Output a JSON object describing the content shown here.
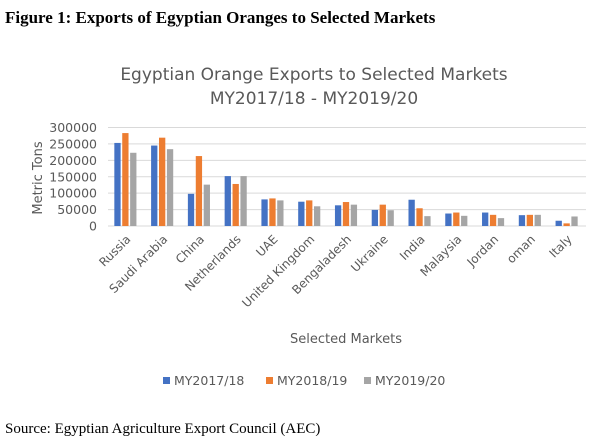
{
  "figure_title": "Figure 1: Exports of Egyptian Oranges to Selected Markets",
  "source": "Source: Egyptian Agriculture Export Council (AEC)",
  "colors": {
    "MY2017/18": "#4472c4",
    "MY2018/19": "#ed7d31",
    "MY2019/20": "#a5a5a5"
  },
  "chart_data": {
    "type": "bar",
    "title": "Egyptian Orange Exports to Selected Markets",
    "subtitle": "MY2017/18 - MY2019/20",
    "xlabel": "Selected Markets",
    "ylabel": "Metric Tons",
    "ylim": [
      0,
      300000
    ],
    "yticks": [
      "0",
      "50000",
      "100000",
      "150000",
      "200000",
      "250000",
      "300000"
    ],
    "grid": true,
    "legend_position": "bottom",
    "categories": [
      "Russia",
      "Saudi Arabia",
      "China",
      "Netherlands",
      "UAE",
      "United Kingdom",
      "Bengaladesh",
      "Ukraine",
      "India",
      "Malaysia",
      "Jordan",
      "oman",
      "Italy"
    ],
    "series": [
      {
        "name": "MY2017/18",
        "values": [
          253000,
          245000,
          98000,
          152000,
          81000,
          74000,
          63000,
          49000,
          80000,
          38000,
          41000,
          33000,
          16000
        ]
      },
      {
        "name": "MY2018/19",
        "values": [
          283000,
          269000,
          213000,
          128000,
          84000,
          78000,
          73000,
          65000,
          54000,
          41000,
          34000,
          34000,
          8000
        ]
      },
      {
        "name": "MY2019/20",
        "values": [
          223000,
          234000,
          126000,
          152000,
          78000,
          60000,
          65000,
          48000,
          30000,
          31000,
          24000,
          34000,
          29000
        ]
      }
    ]
  }
}
